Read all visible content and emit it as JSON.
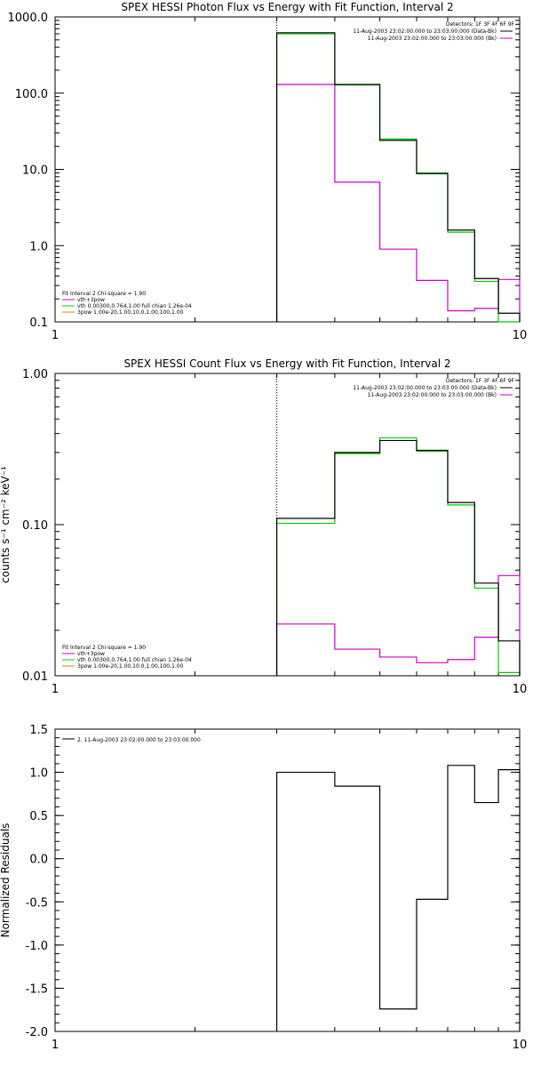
{
  "chart_data": [
    {
      "type": "line",
      "title": "SPEX HESSI Photon Flux vs Energy with Fit Function, Interval 2",
      "ylabel": "",
      "xlabel": "",
      "xscale": "log",
      "yscale": "log",
      "xlim": [
        1,
        10
      ],
      "ylim": [
        0.1,
        1000
      ],
      "x_tick_labels": [
        "1",
        "10"
      ],
      "y_tick_labels": [
        "0.1",
        "1.0",
        "10.0",
        "100.0",
        "1000.0"
      ],
      "y_tick_values": [
        0.1,
        1,
        10,
        100,
        1000
      ],
      "vline_x": 3.0,
      "bin_edges": [
        3.0,
        4.0,
        5.0,
        6.0,
        7.0,
        8.0,
        9.0,
        10.0
      ],
      "series": [
        {
          "name": "",
          "color": "#000000",
          "values": [
            620,
            130,
            24,
            8.8,
            1.6,
            0.37,
            0.13
          ]
        },
        {
          "name": "vth+3pow",
          "color": "#cc00cc",
          "values": [
            130,
            6.8,
            0.9,
            0.35,
            0.14,
            0.15,
            0.36
          ]
        },
        {
          "name": "vth 0.00300,0.764,1.00  full chian 1.26e-04",
          "color": "#00cc00",
          "values": [
            600,
            128,
            25,
            9.0,
            1.5,
            0.34,
            0.1
          ]
        },
        {
          "name": "3pow 1.00e-20,1.00,10.0,1.00,100,1.00",
          "color": "#e08000",
          "values": []
        }
      ],
      "legend_top": {
        "header": "Detectors: 1F 3F 4F 6F 9F",
        "lines": [
          {
            "text": "11-Aug-2003 23:02:00.000 to 23:03:00.000 (Data-Bk)",
            "color": "#000000"
          },
          {
            "text": "11-Aug-2003 23:02:00.000 to 23:03:00.000 (Bk)",
            "color": "#cc00cc"
          }
        ]
      },
      "legend_bottom": {
        "header": "Fit Interval 2   Chi-square = 1.90",
        "lines": [
          {
            "text": "vth+3pow",
            "color": "#cc00cc"
          },
          {
            "text": "vth 0.00300,0.764,1.00  full chian 1.26e-04",
            "color": "#00cc00"
          },
          {
            "text": "3pow 1.00e-20,1.00,10.0,1.00,100,1.00",
            "color": "#e08000"
          }
        ]
      }
    },
    {
      "type": "line",
      "title": "SPEX HESSI Count Flux vs Energy with Fit Function, Interval 2",
      "ylabel": "counts s⁻¹ cm⁻² keV⁻¹",
      "xlabel": "",
      "xscale": "log",
      "yscale": "log",
      "xlim": [
        1,
        10
      ],
      "ylim": [
        0.01,
        1.0
      ],
      "x_tick_labels": [
        "1",
        "10"
      ],
      "y_tick_labels": [
        "0.01",
        "0.10",
        "1.00"
      ],
      "y_tick_values": [
        0.01,
        0.1,
        1.0
      ],
      "vline_x": 3.0,
      "bin_edges": [
        3.0,
        4.0,
        5.0,
        6.0,
        7.0,
        8.0,
        9.0,
        10.0
      ],
      "series": [
        {
          "name": "",
          "color": "#000000",
          "values": [
            0.11,
            0.3,
            0.36,
            0.31,
            0.14,
            0.041,
            0.017
          ]
        },
        {
          "name": "vth+3pow",
          "color": "#cc00cc",
          "values": [
            0.022,
            0.015,
            0.0133,
            0.0122,
            0.0128,
            0.018,
            0.046
          ]
        },
        {
          "name": "vth 0.00300,0.764,1.00  full chian 1.26e-04",
          "color": "#00cc00",
          "values": [
            0.102,
            0.295,
            0.375,
            0.305,
            0.135,
            0.038,
            0.0105
          ]
        },
        {
          "name": "3pow 1.00e-20,1.00,10.0,1.00,100,1.00",
          "color": "#e08000",
          "values": []
        }
      ],
      "legend_top": {
        "header": "Detectors: 1F 3F 4F 6F 9F",
        "lines": [
          {
            "text": "11-Aug-2003 23:02:00.000 to 23:03:00.000 (Data-Bk)",
            "color": "#000000"
          },
          {
            "text": "11-Aug-2003 23:02:00.000 to 23:03:00.000 (Bk)",
            "color": "#cc00cc"
          }
        ]
      },
      "legend_bottom": {
        "header": "Fit Interval 2   Chi-square = 1.90",
        "lines": [
          {
            "text": "vth+3pow",
            "color": "#cc00cc"
          },
          {
            "text": "vth 0.00300,0.764,1.00  full chian 1.26e-04",
            "color": "#00cc00"
          },
          {
            "text": "3pow 1.00e-20,1.00,10.0,1.00,100,1.00",
            "color": "#e08000"
          }
        ]
      }
    },
    {
      "type": "line",
      "title": "",
      "ylabel": "Normalized Residuals",
      "xlabel": "",
      "xscale": "log",
      "yscale": "linear",
      "xlim": [
        1,
        10
      ],
      "ylim": [
        -2.0,
        1.5
      ],
      "x_tick_labels": [
        "1",
        "10"
      ],
      "y_tick_labels": [
        "-2.0",
        "-1.5",
        "-1.0",
        "-0.5",
        "0.0",
        "0.5",
        "1.0",
        "1.5"
      ],
      "y_tick_values": [
        -2.0,
        -1.5,
        -1.0,
        -0.5,
        0.0,
        0.5,
        1.0,
        1.5
      ],
      "bin_edges": [
        3.0,
        4.0,
        5.0,
        6.0,
        7.0,
        8.0,
        9.0,
        10.0
      ],
      "series": [
        {
          "name": "2. 11-Aug-2003 23:02:00.000 to 23:03:00.000",
          "color": "#000000",
          "values": [
            1.0,
            0.84,
            -1.74,
            -0.47,
            1.08,
            0.65,
            1.03
          ]
        }
      ],
      "legend_top": {
        "header": "",
        "lines": [
          {
            "text": "2. 11-Aug-2003 23:02:00.000 to 23:03:00.000",
            "color": "#000000"
          }
        ]
      }
    }
  ]
}
